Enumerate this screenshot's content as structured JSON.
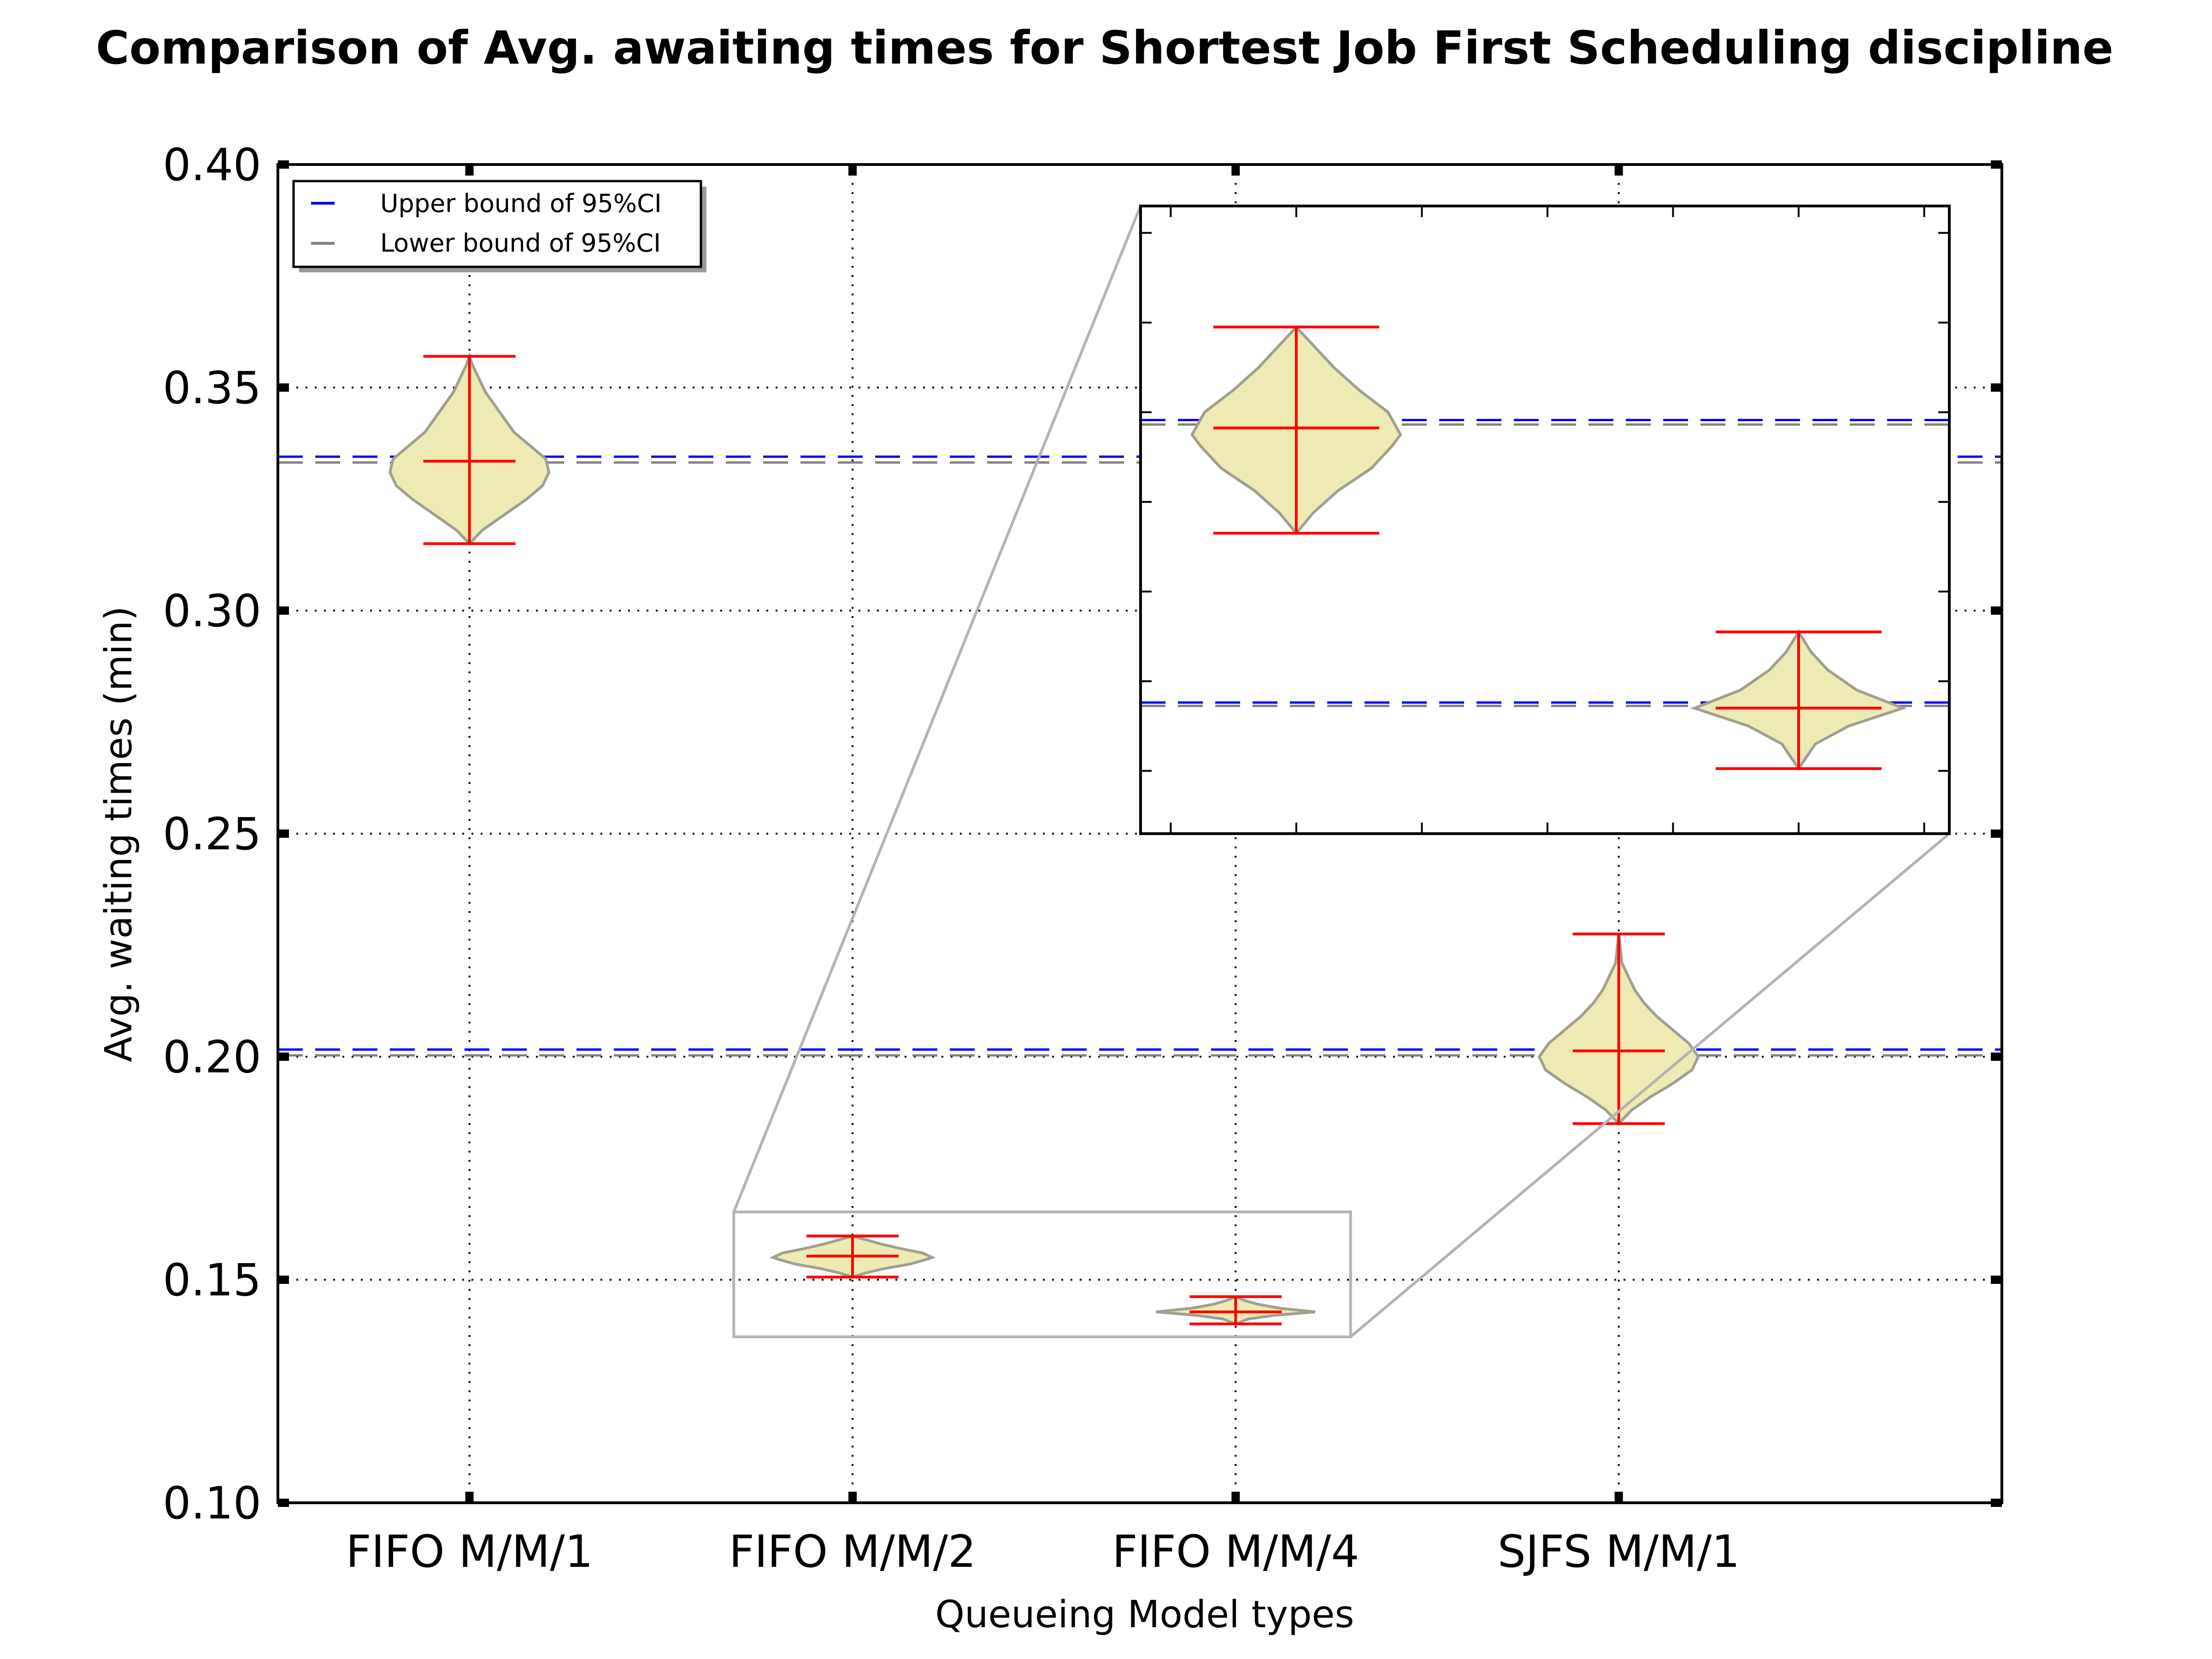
{
  "chart_data": {
    "type": "violin",
    "title": "Comparison of Avg. awaiting times for Shortest Job First Scheduling discipline",
    "xlabel": "Queueing Model types",
    "ylabel": "Avg. waiting times (min)",
    "ylim": [
      0.1,
      0.4
    ],
    "yticks": [
      "0.10",
      "0.15",
      "0.20",
      "0.25",
      "0.30",
      "0.35",
      "0.40"
    ],
    "categories": [
      "FIFO M/M/1",
      "FIFO M/M/2",
      "FIFO M/M/4",
      "SJFS M/M/1"
    ],
    "grid": true,
    "legend": {
      "placement": "top-left",
      "entries": [
        {
          "label": "Upper bound of 95%CI",
          "color": "#0000ff"
        },
        {
          "label": "Lower bound of 95%CI",
          "color": "#808080"
        }
      ]
    },
    "violins": [
      {
        "category": "FIFO M/M/1",
        "min": 0.315,
        "max": 0.357,
        "median": 0.3335,
        "peak": 0.333,
        "halfwidth": 0.125,
        "profile": [
          [
            0.315,
            0.0
          ],
          [
            0.318,
            0.02
          ],
          [
            0.321,
            0.05
          ],
          [
            0.325,
            0.09
          ],
          [
            0.328,
            0.115
          ],
          [
            0.331,
            0.125
          ],
          [
            0.334,
            0.12
          ],
          [
            0.337,
            0.095
          ],
          [
            0.34,
            0.07
          ],
          [
            0.343,
            0.055
          ],
          [
            0.346,
            0.04
          ],
          [
            0.349,
            0.025
          ],
          [
            0.352,
            0.015
          ],
          [
            0.355,
            0.005
          ],
          [
            0.357,
            0.0
          ]
        ]
      },
      {
        "category": "FIFO M/M/2",
        "min": 0.1506,
        "max": 0.1598,
        "median": 0.1553,
        "peak": 0.155,
        "halfwidth": 0.125,
        "profile": [
          [
            0.1506,
            0.0
          ],
          [
            0.1515,
            0.02
          ],
          [
            0.1525,
            0.05
          ],
          [
            0.1535,
            0.09
          ],
          [
            0.1545,
            0.115
          ],
          [
            0.155,
            0.125
          ],
          [
            0.156,
            0.11
          ],
          [
            0.157,
            0.075
          ],
          [
            0.158,
            0.045
          ],
          [
            0.159,
            0.02
          ],
          [
            0.1598,
            0.0
          ]
        ]
      },
      {
        "category": "FIFO M/M/4",
        "min": 0.1401,
        "max": 0.1462,
        "median": 0.1428,
        "peak": 0.1428,
        "halfwidth": 0.125,
        "profile": [
          [
            0.1401,
            0.0
          ],
          [
            0.1412,
            0.02
          ],
          [
            0.142,
            0.06
          ],
          [
            0.1428,
            0.125
          ],
          [
            0.1436,
            0.07
          ],
          [
            0.1445,
            0.035
          ],
          [
            0.1453,
            0.015
          ],
          [
            0.1462,
            0.0
          ]
        ]
      },
      {
        "category": "SJFS M/M/1",
        "min": 0.185,
        "max": 0.2275,
        "median": 0.2013,
        "peak": 0.2,
        "halfwidth": 0.125,
        "profile": [
          [
            0.185,
            0.0
          ],
          [
            0.188,
            0.02
          ],
          [
            0.191,
            0.05
          ],
          [
            0.194,
            0.085
          ],
          [
            0.197,
            0.115
          ],
          [
            0.2,
            0.125
          ],
          [
            0.203,
            0.11
          ],
          [
            0.206,
            0.085
          ],
          [
            0.209,
            0.06
          ],
          [
            0.212,
            0.04
          ],
          [
            0.215,
            0.025
          ],
          [
            0.218,
            0.015
          ],
          [
            0.221,
            0.005
          ],
          [
            0.2275,
            0.0
          ]
        ]
      }
    ],
    "ci_lines": [
      {
        "kind": "upper",
        "value": 0.3345,
        "color": "#0000ff"
      },
      {
        "kind": "lower",
        "value": 0.3332,
        "color": "#808080"
      },
      {
        "kind": "upper",
        "value": 0.2016,
        "color": "#0000ff"
      },
      {
        "kind": "lower",
        "value": 0.2003,
        "color": "#808080"
      }
    ],
    "inset": {
      "xlim": [
        1.69,
        3.3
      ],
      "ylim": [
        0.1372,
        0.1652
      ],
      "ci_lines": [
        {
          "kind": "upper",
          "value": 0.15565,
          "color": "#0000ff"
        },
        {
          "kind": "lower",
          "value": 0.15545,
          "color": "#808080"
        },
        {
          "kind": "upper",
          "value": 0.14305,
          "color": "#0000ff"
        },
        {
          "kind": "lower",
          "value": 0.1429,
          "color": "#808080"
        }
      ]
    },
    "colors": {
      "violin_fill": "#eeeab4",
      "violin_edge": "#a0a090",
      "whisker": "#ff0000",
      "grid": "#000000",
      "zoom_box": "#b3b3b3"
    }
  }
}
